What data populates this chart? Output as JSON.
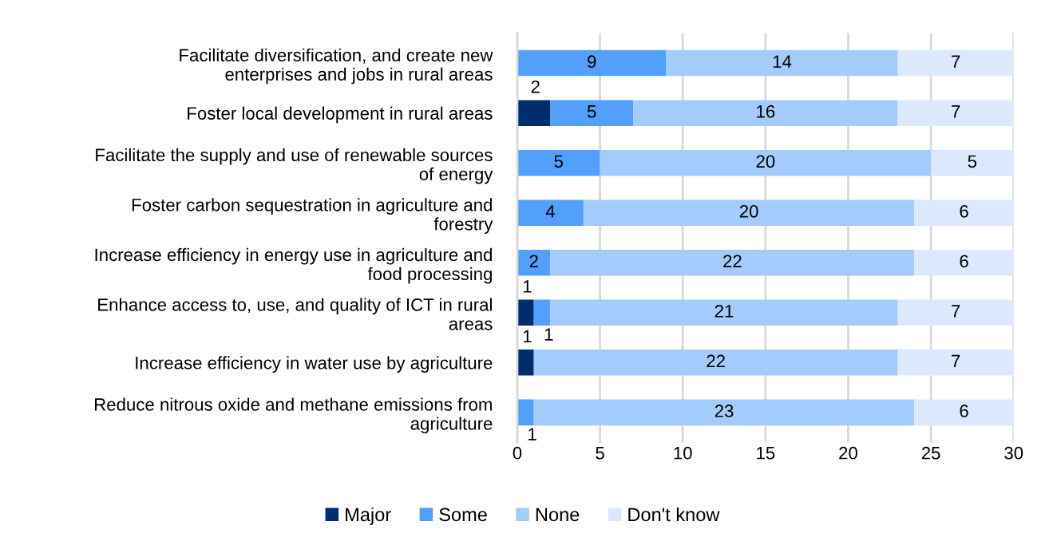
{
  "chart_data": {
    "type": "bar",
    "orientation": "horizontal",
    "stacked": true,
    "categories": [
      "Facilitate diversification, and create new\nenterprises and jobs in rural areas",
      "Foster local development in rural areas",
      "Facilitate the supply and use of renewable sources\nof energy",
      "Foster carbon sequestration in agriculture and\nforestry",
      "Increase efficiency in energy use in agriculture and\nfood processing",
      "Enhance access to, use, and quality of ICT in rural\nareas",
      "Increase efficiency in water use by agriculture",
      "Reduce nitrous oxide and methane emissions from\nagriculture"
    ],
    "series": [
      {
        "name": "Major",
        "color": "#002d6e",
        "values": [
          0,
          2,
          0,
          0,
          0,
          1,
          1,
          0
        ],
        "value_labels": [
          null,
          "2",
          null,
          null,
          null,
          "1",
          "1",
          null
        ]
      },
      {
        "name": "Some",
        "color": "#529ffc",
        "values": [
          9,
          5,
          5,
          4,
          2,
          1,
          0,
          1
        ],
        "value_labels": [
          "9",
          "5",
          "5",
          "4",
          "2",
          "1",
          null,
          "1"
        ]
      },
      {
        "name": "None",
        "color": "#a3cbfc",
        "values": [
          14,
          16,
          20,
          20,
          22,
          21,
          22,
          23
        ],
        "value_labels": [
          "14",
          "16",
          "20",
          "20",
          "22",
          "21",
          "22",
          "23"
        ]
      },
      {
        "name": "Don't know",
        "color": "#dce9fc",
        "values": [
          7,
          7,
          5,
          6,
          6,
          7,
          7,
          6
        ],
        "value_labels": [
          "7",
          "7",
          "5",
          "6",
          "6",
          "7",
          "7",
          "6"
        ]
      }
    ],
    "xlim": [
      0,
      30
    ],
    "xticks": [
      0,
      5,
      10,
      15,
      20,
      25,
      30
    ],
    "grid": "x",
    "legend": "bottom"
  }
}
